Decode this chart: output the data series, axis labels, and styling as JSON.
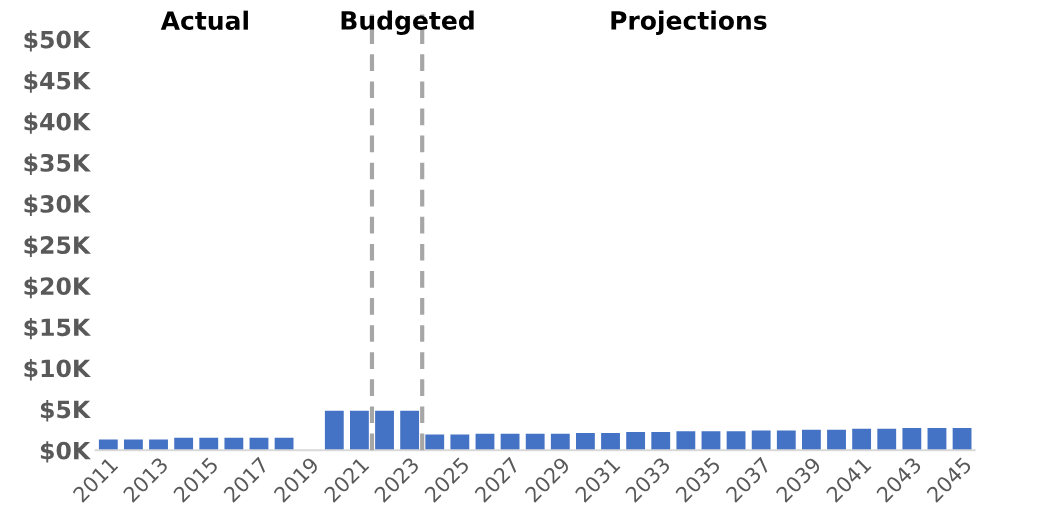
{
  "chart_data": {
    "type": "bar",
    "x": [
      2011,
      2012,
      2013,
      2014,
      2015,
      2016,
      2017,
      2018,
      2019,
      2020,
      2021,
      2022,
      2023,
      2024,
      2025,
      2026,
      2027,
      2028,
      2029,
      2030,
      2031,
      2032,
      2033,
      2034,
      2035,
      2036,
      2037,
      2038,
      2039,
      2040,
      2041,
      2042,
      2043,
      2044,
      2045
    ],
    "values": [
      1300,
      1300,
      1300,
      1500,
      1500,
      1500,
      1500,
      1500,
      null,
      4800,
      4800,
      4800,
      4800,
      1900,
      1900,
      2000,
      2000,
      2000,
      2000,
      2100,
      2100,
      2200,
      2200,
      2300,
      2300,
      2300,
      2400,
      2400,
      2500,
      2500,
      2600,
      2600,
      2700,
      2700,
      2700
    ],
    "color": "#4472c4",
    "xlim": [
      2010.5,
      2045.5
    ],
    "xticks": [
      2011,
      2013,
      2015,
      2017,
      2019,
      2021,
      2023,
      2025,
      2027,
      2029,
      2031,
      2033,
      2035,
      2037,
      2039,
      2041,
      2043,
      2045
    ],
    "ylim": [
      0,
      50000
    ],
    "yticks": [
      {
        "value": 0,
        "label": "$0K"
      },
      {
        "value": 5000,
        "label": "$5K"
      },
      {
        "value": 10000,
        "label": "$10K"
      },
      {
        "value": 15000,
        "label": "$15K"
      },
      {
        "value": 20000,
        "label": "$20K"
      },
      {
        "value": 25000,
        "label": "$25K"
      },
      {
        "value": 30000,
        "label": "$30K"
      },
      {
        "value": 35000,
        "label": "$35K"
      },
      {
        "value": 40000,
        "label": "$40K"
      },
      {
        "value": 45000,
        "label": "$45K"
      },
      {
        "value": 50000,
        "label": "$50K"
      }
    ],
    "ref_lines": [
      {
        "axis": "x",
        "value": 2021.5,
        "color": "#a6a6a6",
        "line_style": "dashed"
      },
      {
        "axis": "x",
        "value": 2023.5,
        "color": "#a6a6a6",
        "line_style": "dashed"
      }
    ],
    "annotations": [
      "Actual",
      "Budgeted",
      "Projections"
    ],
    "grid": false,
    "legend": false
  }
}
